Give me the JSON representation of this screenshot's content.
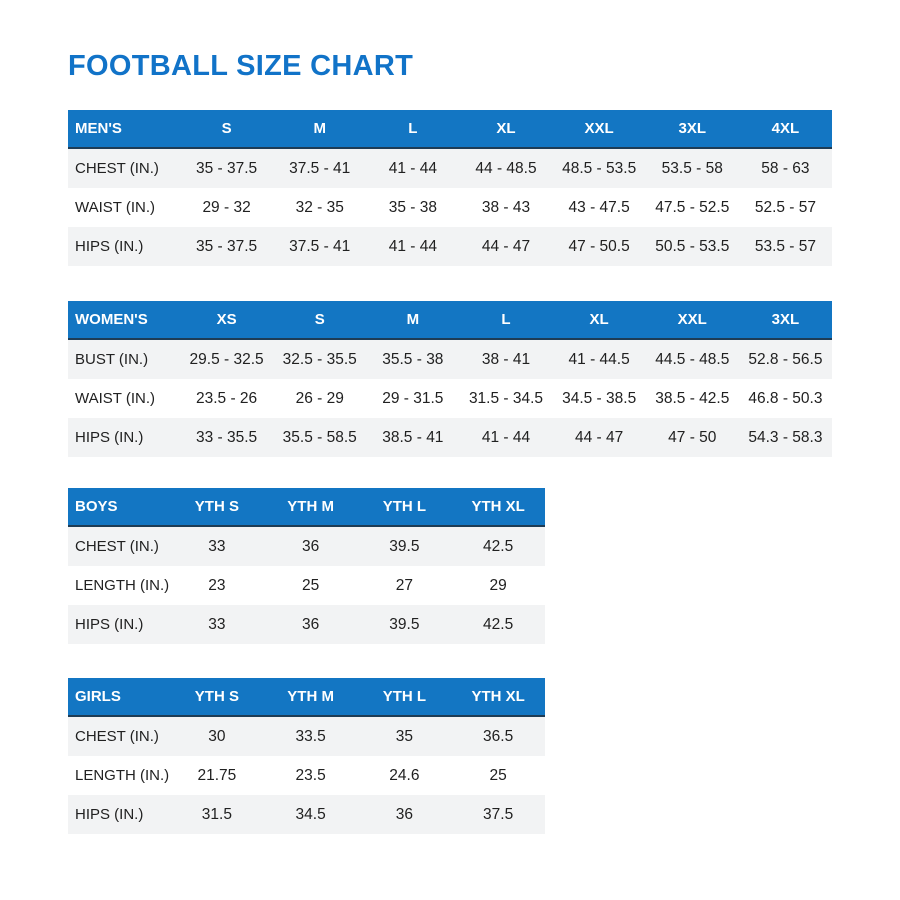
{
  "title": "FOOTBALL SIZE CHART",
  "colors": {
    "title_text": "#1173c8",
    "header_bg": "#1376c3",
    "header_border": "#1e3c55",
    "stripe_row_bg": "#f2f3f4",
    "body_text": "#212121",
    "page_bg": "#ffffff"
  },
  "chart_data": [
    {
      "type": "table",
      "title": "MEN'S",
      "columns": [
        "MEN'S",
        "S",
        "M",
        "L",
        "XL",
        "XXL",
        "3XL",
        "4XL"
      ],
      "rows": [
        {
          "label": "CHEST (IN.)",
          "values": [
            "35 - 37.5",
            "37.5 - 41",
            "41 - 44",
            "44 - 48.5",
            "48.5 - 53.5",
            "53.5 - 58",
            "58 - 63"
          ]
        },
        {
          "label": "WAIST (IN.)",
          "values": [
            "29 - 32",
            "32 - 35",
            "35 - 38",
            "38 - 43",
            "43 - 47.5",
            "47.5 - 52.5",
            "52.5 - 57"
          ]
        },
        {
          "label": "HIPS (IN.)",
          "values": [
            "35 - 37.5",
            "37.5 - 41",
            "41 - 44",
            "44 - 47",
            "47 - 50.5",
            "50.5 - 53.5",
            "53.5 - 57"
          ]
        }
      ]
    },
    {
      "type": "table",
      "title": "WOMEN'S",
      "columns": [
        "WOMEN'S",
        "XS",
        "S",
        "M",
        "L",
        "XL",
        "XXL",
        "3XL"
      ],
      "rows": [
        {
          "label": "BUST (IN.)",
          "values": [
            "29.5 - 32.5",
            "32.5 - 35.5",
            "35.5 - 38",
            "38 - 41",
            "41 - 44.5",
            "44.5 - 48.5",
            "52.8 - 56.5"
          ]
        },
        {
          "label": "WAIST (IN.)",
          "values": [
            "23.5 - 26",
            "26 - 29",
            "29 - 31.5",
            "31.5 - 34.5",
            "34.5 - 38.5",
            "38.5 - 42.5",
            "46.8 - 50.3"
          ]
        },
        {
          "label": "HIPS (IN.)",
          "values": [
            "33 - 35.5",
            "35.5 - 58.5",
            "38.5 - 41",
            "41 - 44",
            "44 - 47",
            "47 - 50",
            "54.3 - 58.3"
          ]
        }
      ]
    },
    {
      "type": "table",
      "title": "BOYS",
      "columns": [
        "BOYS",
        "YTH S",
        "YTH M",
        "YTH L",
        "YTH XL"
      ],
      "rows": [
        {
          "label": "CHEST (IN.)",
          "values": [
            "33",
            "36",
            "39.5",
            "42.5"
          ]
        },
        {
          "label": "LENGTH (IN.)",
          "values": [
            "23",
            "25",
            "27",
            "29"
          ]
        },
        {
          "label": "HIPS (IN.)",
          "values": [
            "33",
            "36",
            "39.5",
            "42.5"
          ]
        }
      ]
    },
    {
      "type": "table",
      "title": "GIRLS",
      "columns": [
        "GIRLS",
        "YTH S",
        "YTH M",
        "YTH L",
        "YTH XL"
      ],
      "rows": [
        {
          "label": "CHEST (IN.)",
          "values": [
            "30",
            "33.5",
            "35",
            "36.5"
          ]
        },
        {
          "label": "LENGTH (IN.)",
          "values": [
            "21.75",
            "23.5",
            "24.6",
            "25"
          ]
        },
        {
          "label": "HIPS (IN.)",
          "values": [
            "31.5",
            "34.5",
            "36",
            "37.5"
          ]
        }
      ]
    }
  ]
}
